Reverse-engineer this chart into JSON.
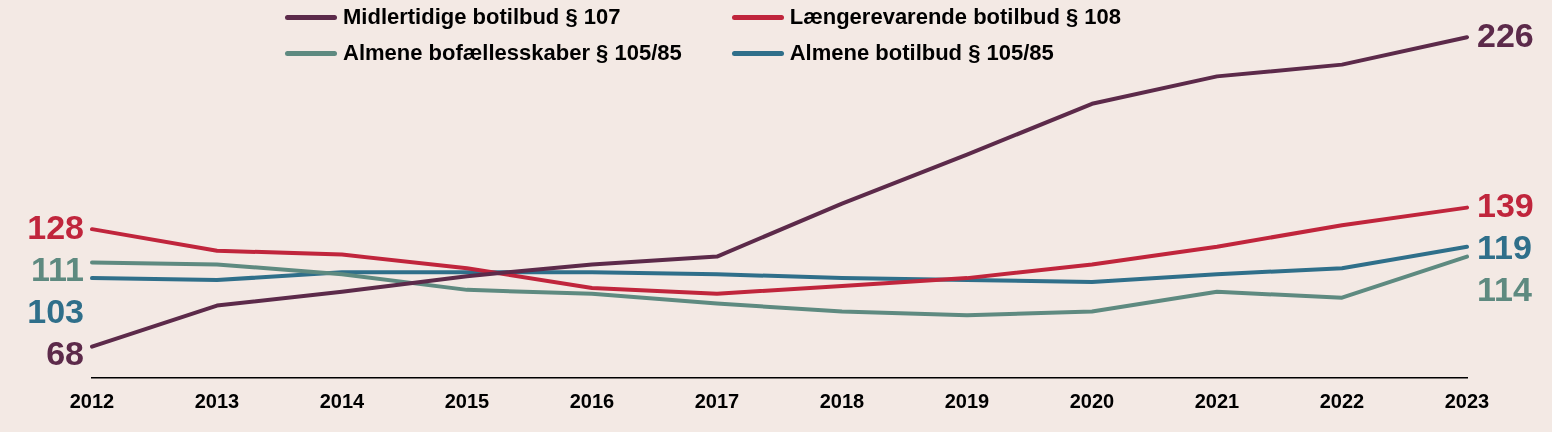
{
  "chart_data": {
    "type": "line",
    "categories": [
      "2012",
      "2013",
      "2014",
      "2015",
      "2016",
      "2017",
      "2018",
      "2019",
      "2020",
      "2021",
      "2022",
      "2023"
    ],
    "ylim": [
      52,
      245
    ],
    "legend": "top",
    "grid": false,
    "marker": "none",
    "line_style": "solid",
    "series": [
      {
        "name": "Midlertidige botilbud § 107",
        "color": "#5c2a4a",
        "values": [
          68,
          89,
          96,
          104,
          110,
          114,
          141,
          166,
          192,
          206,
          212,
          226
        ],
        "value_labels": [
          "68",
          null,
          null,
          null,
          null,
          null,
          null,
          null,
          null,
          null,
          null,
          "226"
        ]
      },
      {
        "name": "Længerevarende botilbud § 108",
        "color": "#c0253c",
        "values": [
          128,
          117,
          115,
          108,
          98,
          95,
          99,
          103,
          110,
          119,
          130,
          139
        ],
        "value_labels": [
          "128",
          null,
          null,
          null,
          null,
          null,
          null,
          null,
          null,
          null,
          null,
          "139"
        ]
      },
      {
        "name": "Almene bofællesskaber § 105/85",
        "color": "#5e8a80",
        "values": [
          111,
          110,
          105,
          97,
          95,
          90,
          86,
          84,
          86,
          96,
          93,
          114
        ],
        "value_labels": [
          "111",
          null,
          null,
          null,
          null,
          null,
          null,
          null,
          null,
          null,
          null,
          "114"
        ]
      },
      {
        "name": "Almene botilbud § 105/85",
        "color": "#2f6f8a",
        "values": [
          103,
          102,
          106,
          106,
          106,
          105,
          103,
          102,
          101,
          105,
          108,
          119
        ],
        "value_labels": [
          "103",
          null,
          null,
          null,
          null,
          null,
          null,
          null,
          null,
          null,
          null,
          "119"
        ]
      }
    ]
  }
}
